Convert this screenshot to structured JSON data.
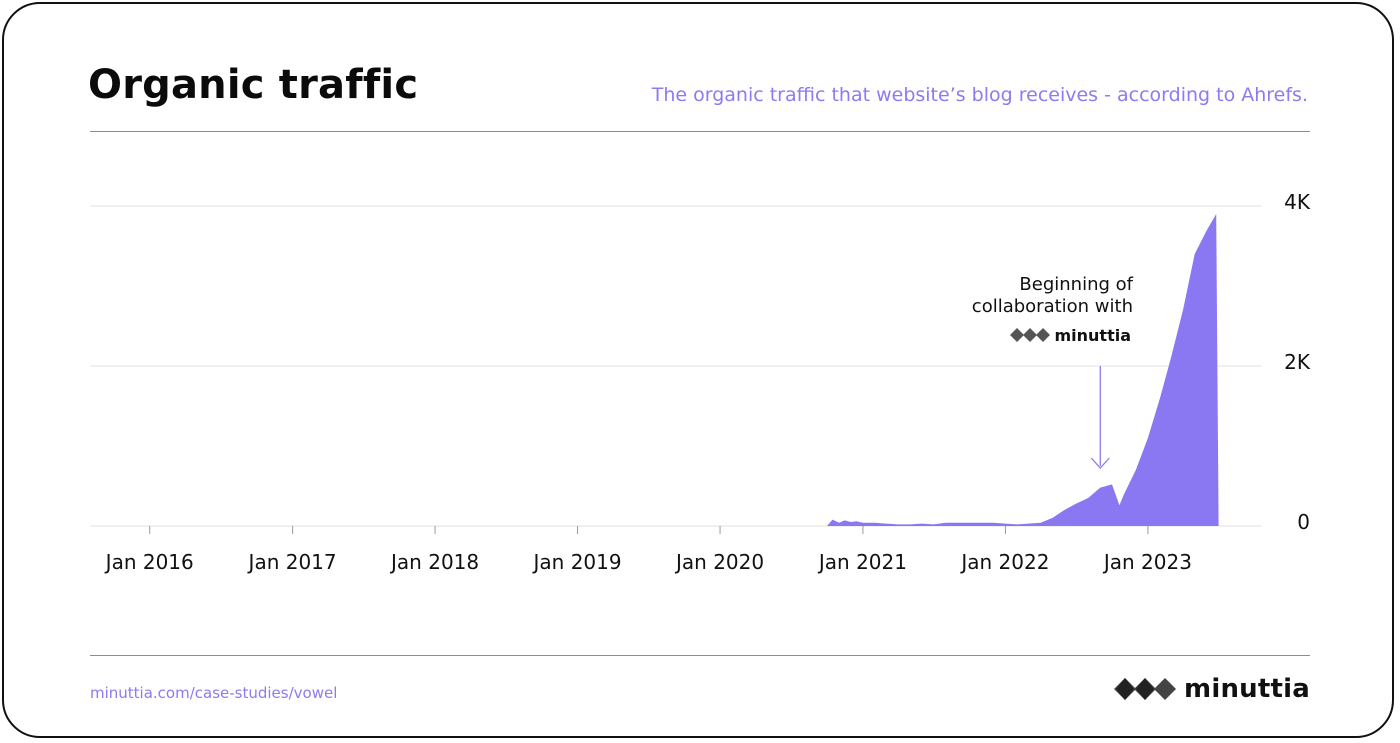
{
  "header": {
    "title": "Organic traffic",
    "subtitle": "The organic traffic that website’s blog receives - according to Ahrefs."
  },
  "footer": {
    "url": "minuttia.com/case-studies/vowel",
    "brand": "minuttia"
  },
  "colors": {
    "accent": "#8b7cf0",
    "area": "#8a78f2",
    "text": "#111111",
    "grid": "#e2e2e2"
  },
  "chart_data": {
    "type": "area",
    "title": "Organic traffic",
    "xlabel": "",
    "ylabel": "",
    "x_ticks": [
      "Jan 2016",
      "Jan 2017",
      "Jan 2018",
      "Jan 2019",
      "Jan 2020",
      "Jan 2021",
      "Jan 2022",
      "Jan 2023"
    ],
    "y_ticks": [
      {
        "value": 0,
        "label": "0"
      },
      {
        "value": 2000,
        "label": "2K"
      },
      {
        "value": 4000,
        "label": "4K"
      }
    ],
    "y_axis_side": "right",
    "ylim": [
      0,
      4000
    ],
    "grid": true,
    "series": [
      {
        "values": [
          [
            "2020-10-01",
            0
          ],
          [
            "2020-10-15",
            80
          ],
          [
            "2020-11-01",
            40
          ],
          [
            "2020-11-15",
            70
          ],
          [
            "2020-12-01",
            50
          ],
          [
            "2020-12-15",
            60
          ],
          [
            "2021-01-01",
            40
          ],
          [
            "2021-02-01",
            40
          ],
          [
            "2021-03-01",
            30
          ],
          [
            "2021-04-01",
            20
          ],
          [
            "2021-05-01",
            20
          ],
          [
            "2021-06-01",
            30
          ],
          [
            "2021-07-01",
            20
          ],
          [
            "2021-08-01",
            40
          ],
          [
            "2021-09-01",
            40
          ],
          [
            "2021-10-01",
            40
          ],
          [
            "2021-11-01",
            40
          ],
          [
            "2021-12-01",
            40
          ],
          [
            "2022-01-01",
            30
          ],
          [
            "2022-02-01",
            20
          ],
          [
            "2022-03-01",
            30
          ],
          [
            "2022-04-01",
            40
          ],
          [
            "2022-05-01",
            100
          ],
          [
            "2022-06-01",
            200
          ],
          [
            "2022-07-01",
            280
          ],
          [
            "2022-08-01",
            350
          ],
          [
            "2022-09-01",
            480
          ],
          [
            "2022-10-01",
            520
          ],
          [
            "2022-10-20",
            260
          ],
          [
            "2022-11-01",
            400
          ],
          [
            "2022-12-01",
            700
          ],
          [
            "2023-01-01",
            1100
          ],
          [
            "2023-02-01",
            1600
          ],
          [
            "2023-03-01",
            2100
          ],
          [
            "2023-04-01",
            2700
          ],
          [
            "2023-05-01",
            3400
          ],
          [
            "2023-06-01",
            3700
          ],
          [
            "2023-06-25",
            3900
          ],
          [
            "2023-07-01",
            0
          ]
        ]
      }
    ],
    "x_range": [
      "2015-08-01",
      "2023-12-31"
    ],
    "annotations": [
      {
        "line1": "Beginning of",
        "line2": "collaboration with",
        "logo": "minuttia",
        "date": "2022-09-01"
      }
    ]
  }
}
